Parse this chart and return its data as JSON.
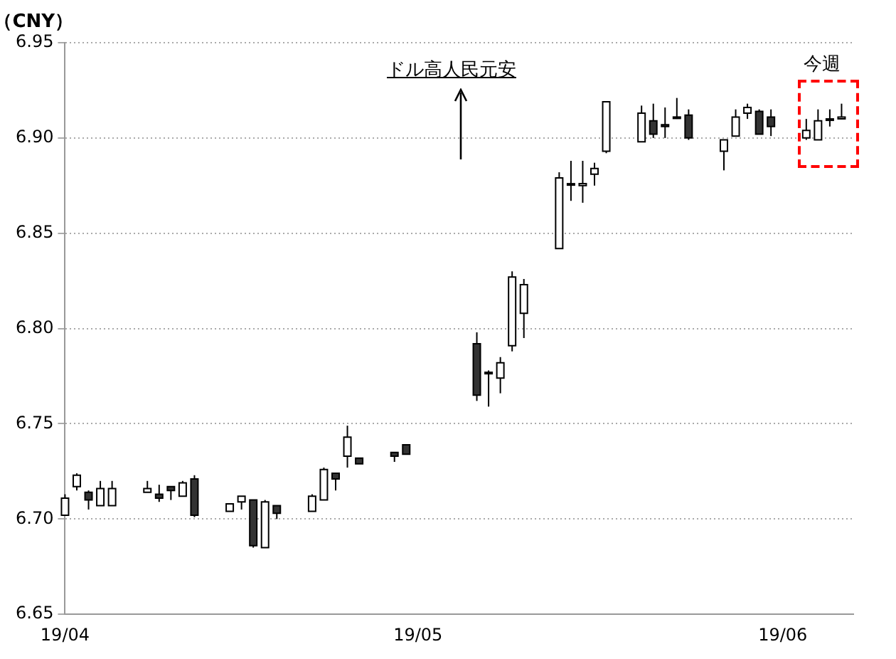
{
  "chart_data": {
    "type": "candlestick",
    "ylabel": "（CNY）",
    "annotations": [
      "ドル高人民元安",
      "今週"
    ],
    "x": [
      "--04-01",
      "--04-02",
      "--04-03",
      "--04-04",
      "--04-05",
      "--04-08",
      "--04-09",
      "--04-10",
      "--04-11",
      "--04-12",
      "--04-15",
      "--04-16",
      "--04-17",
      "--04-18",
      "--04-19",
      "--04-22",
      "--04-23",
      "--04-24",
      "--04-25",
      "--04-26",
      "--04-29",
      "--04-30",
      "--05-06",
      "--05-07",
      "--05-08",
      "--05-09",
      "--05-10",
      "--05-13",
      "--05-14",
      "--05-15",
      "--05-16",
      "--05-17",
      "--05-20",
      "--05-21",
      "--05-22",
      "--05-23",
      "--05-24",
      "--05-27",
      "--05-28",
      "--05-29",
      "--05-30",
      "--05-31",
      "--06-03",
      "--06-04",
      "--06-05",
      "--06-06"
    ],
    "ohlc": [
      [
        6.702,
        6.713,
        6.702,
        6.711
      ],
      [
        6.717,
        6.724,
        6.715,
        6.723
      ],
      [
        6.714,
        6.715,
        6.705,
        6.71
      ],
      [
        6.707,
        6.72,
        6.707,
        6.716
      ],
      [
        6.707,
        6.72,
        6.707,
        6.716
      ],
      [
        6.714,
        6.72,
        6.714,
        6.716
      ],
      [
        6.713,
        6.718,
        6.709,
        6.711
      ],
      [
        6.717,
        6.717,
        6.71,
        6.715
      ],
      [
        6.712,
        6.72,
        6.712,
        6.719
      ],
      [
        6.721,
        6.723,
        6.701,
        6.702
      ],
      [
        6.704,
        6.708,
        6.704,
        6.708
      ],
      [
        6.709,
        6.712,
        6.705,
        6.712
      ],
      [
        6.71,
        6.71,
        6.685,
        6.686
      ],
      [
        6.685,
        6.71,
        6.685,
        6.709
      ],
      [
        6.707,
        6.707,
        6.7,
        6.703
      ],
      [
        6.704,
        6.713,
        6.704,
        6.712
      ],
      [
        6.71,
        6.727,
        6.71,
        6.726
      ],
      [
        6.724,
        6.724,
        6.715,
        6.721
      ],
      [
        6.733,
        6.749,
        6.727,
        6.743
      ],
      [
        6.732,
        6.732,
        6.729,
        6.729
      ],
      [
        6.735,
        6.735,
        6.73,
        6.733
      ],
      [
        6.739,
        6.739,
        6.734,
        6.734
      ],
      [
        6.792,
        6.798,
        6.762,
        6.765
      ],
      [
        6.777,
        6.778,
        6.759,
        6.777
      ],
      [
        6.774,
        6.785,
        6.766,
        6.782
      ],
      [
        6.791,
        6.83,
        6.788,
        6.827
      ],
      [
        6.808,
        6.826,
        6.795,
        6.823
      ],
      [
        6.842,
        6.882,
        6.842,
        6.879
      ],
      [
        6.876,
        6.888,
        6.867,
        6.876
      ],
      [
        6.875,
        6.888,
        6.866,
        6.876
      ],
      [
        6.881,
        6.887,
        6.875,
        6.884
      ],
      [
        6.893,
        6.919,
        6.892,
        6.919
      ],
      [
        6.898,
        6.917,
        6.898,
        6.913
      ],
      [
        6.909,
        6.918,
        6.9,
        6.902
      ],
      [
        6.907,
        6.916,
        6.9,
        6.906
      ],
      [
        6.911,
        6.921,
        6.91,
        6.911
      ],
      [
        6.912,
        6.915,
        6.899,
        6.9
      ],
      [
        6.893,
        6.899,
        6.883,
        6.899
      ],
      [
        6.901,
        6.915,
        6.901,
        6.911
      ],
      [
        6.913,
        6.918,
        6.91,
        6.916
      ],
      [
        6.914,
        6.915,
        6.902,
        6.902
      ],
      [
        6.911,
        6.915,
        6.901,
        6.906
      ],
      [
        6.9,
        6.91,
        6.899,
        6.904
      ],
      [
        6.899,
        6.915,
        6.899,
        6.909
      ],
      [
        6.91,
        6.915,
        6.906,
        6.91
      ],
      [
        6.91,
        6.918,
        6.91,
        6.911
      ]
    ],
    "colors": [
      "#ffffff",
      "#ffffff",
      "#333333",
      "#ffffff",
      "#ffffff",
      "#ffffff",
      "#333333",
      "#333333",
      "#ffffff",
      "#333333",
      "#ffffff",
      "#ffffff",
      "#333333",
      "#ffffff",
      "#333333",
      "#ffffff",
      "#ffffff",
      "#333333",
      "#ffffff",
      "#333333",
      "#333333",
      "#333333",
      "#333333",
      "#ffffff",
      "#ffffff",
      "#ffffff",
      "#ffffff",
      "#ffffff",
      "#ffffff",
      "#ffffff",
      "#ffffff",
      "#ffffff",
      "#ffffff",
      "#333333",
      "#333333",
      "#ffffff",
      "#333333",
      "#ffffff",
      "#ffffff",
      "#ffffff",
      "#333333",
      "#333333",
      "#ffffff",
      "#ffffff",
      "#ffffff",
      "#ffffff"
    ],
    "xlim": [
      "--04-01",
      "--06-07"
    ],
    "xticks": [
      {
        "value": "--04-01",
        "label": "19/04"
      },
      {
        "value": "--05-01",
        "label": "19/05"
      },
      {
        "value": "--06-01",
        "label": "19/06"
      }
    ],
    "ylim": [
      6.65,
      6.95
    ],
    "yticks": [
      6.65,
      {
        "value": 6.7,
        "label": "6.70"
      },
      6.75,
      {
        "value": 6.8,
        "label": "6.80"
      },
      6.85,
      {
        "value": 6.9,
        "label": "6.90"
      },
      6.95
    ],
    "grid": "y",
    "legend": false
  }
}
